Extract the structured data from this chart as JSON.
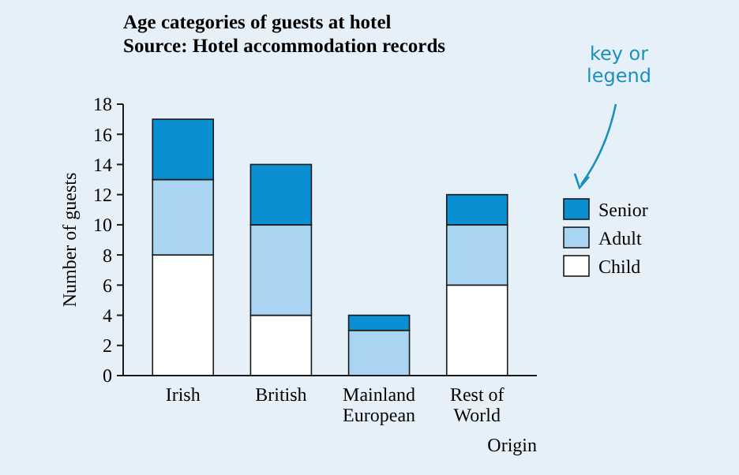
{
  "chart_data": {
    "type": "bar",
    "stacked": true,
    "title": "Age categories of guests at hotel",
    "subtitle": "Source: Hotel accommodation records",
    "xlabel": "Origin",
    "ylabel": "Number of guests",
    "categories": [
      "Irish",
      "British",
      "Mainland European",
      "Rest of World"
    ],
    "series": [
      {
        "name": "Child",
        "color": "#ffffff",
        "values": [
          8,
          4,
          0,
          6
        ]
      },
      {
        "name": "Adult",
        "color": "#a9d5f2",
        "values": [
          5,
          6,
          3,
          4
        ]
      },
      {
        "name": "Senior",
        "color": "#0a8fd2",
        "values": [
          4,
          4,
          1,
          2
        ]
      }
    ],
    "ylim": [
      0,
      18
    ],
    "yticks": [
      0,
      2,
      4,
      6,
      8,
      10,
      12,
      14,
      16,
      18
    ],
    "grid": false,
    "legend": "right",
    "annotations": [
      "key or legend"
    ]
  }
}
